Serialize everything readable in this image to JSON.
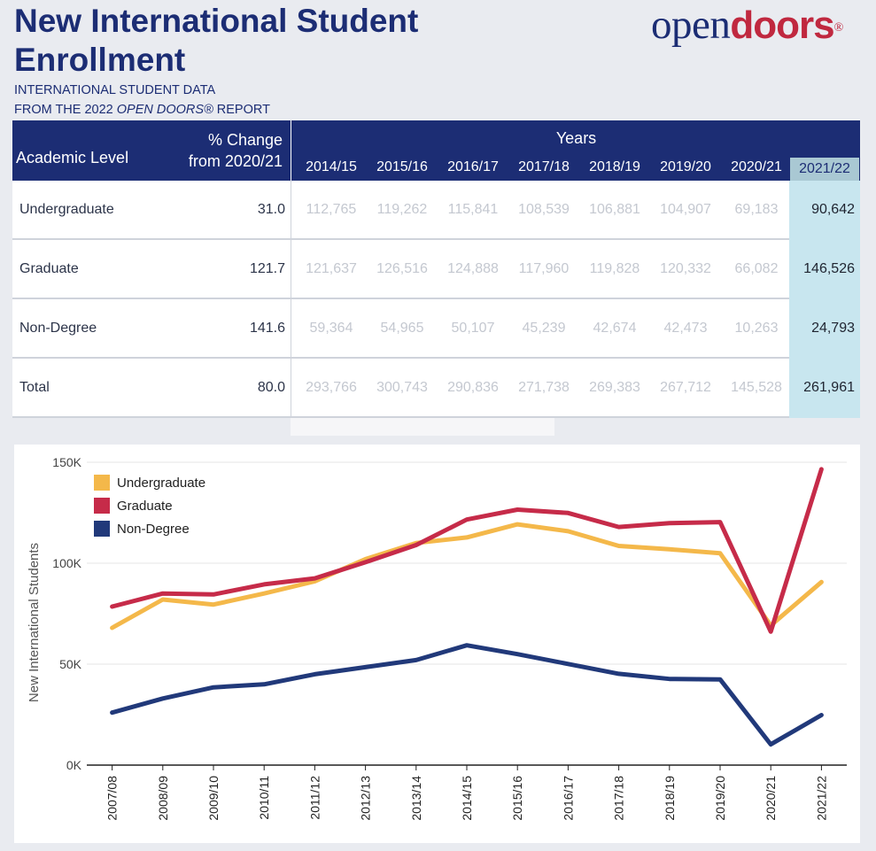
{
  "header": {
    "title": "New International Student Enrollment",
    "subtitle_line1": "INTERNATIONAL STUDENT DATA",
    "subtitle_line2_pre": "FROM THE 2022 ",
    "subtitle_line2_em": "OPEN DOORS®",
    "subtitle_line2_post": " REPORT",
    "logo_open": "open",
    "logo_doors": "doors",
    "logo_reg": "®"
  },
  "table": {
    "col_level": "Academic Level",
    "col_change_1": "% Change",
    "col_change_2": "from 2020/21",
    "col_years": "Years",
    "years": [
      "2014/15",
      "2015/16",
      "2016/17",
      "2017/18",
      "2018/19",
      "2019/20",
      "2020/21",
      "2021/22"
    ],
    "rows": [
      {
        "label": "Undergraduate",
        "change": "31.0",
        "values": [
          "112,765",
          "119,262",
          "115,841",
          "108,539",
          "106,881",
          "104,907",
          "69,183",
          "90,642"
        ]
      },
      {
        "label": "Graduate",
        "change": "121.7",
        "values": [
          "121,637",
          "126,516",
          "124,888",
          "117,960",
          "119,828",
          "120,332",
          "66,082",
          "146,526"
        ]
      },
      {
        "label": "Non-Degree",
        "change": "141.6",
        "values": [
          "59,364",
          "54,965",
          "50,107",
          "45,239",
          "42,674",
          "42,473",
          "10,263",
          "24,793"
        ]
      },
      {
        "label": "Total",
        "change": "80.0",
        "values": [
          "293,766",
          "300,743",
          "290,836",
          "271,738",
          "269,383",
          "267,712",
          "145,528",
          "261,961"
        ]
      }
    ]
  },
  "chart_data": {
    "type": "line",
    "ylabel": "New International Students",
    "ylim": [
      0,
      150000
    ],
    "yticks": [
      0,
      50000,
      100000,
      150000
    ],
    "ytick_labels": [
      "0K",
      "50K",
      "100K",
      "150K"
    ],
    "grid": true,
    "legend_position": "top-left",
    "x": [
      "2007/08",
      "2008/09",
      "2009/10",
      "2010/11",
      "2011/12",
      "2012/13",
      "2013/14",
      "2014/15",
      "2015/16",
      "2016/17",
      "2017/18",
      "2018/19",
      "2019/20",
      "2020/21",
      "2021/22"
    ],
    "series": [
      {
        "name": "Undergraduate",
        "color": "#f4b84a",
        "values": [
          68000,
          82000,
          79500,
          85000,
          91000,
          102000,
          110000,
          112765,
          119262,
          115841,
          108539,
          106881,
          104907,
          69183,
          90642
        ]
      },
      {
        "name": "Graduate",
        "color": "#c62b49",
        "values": [
          78500,
          85000,
          84500,
          89500,
          92500,
          100500,
          109000,
          121637,
          126516,
          124888,
          117960,
          119828,
          120332,
          66082,
          146526
        ]
      },
      {
        "name": "Non-Degree",
        "color": "#21397a",
        "values": [
          26000,
          33000,
          38500,
          40000,
          45000,
          48500,
          52000,
          59364,
          54965,
          50107,
          45239,
          42674,
          42473,
          10263,
          24793
        ]
      }
    ]
  }
}
